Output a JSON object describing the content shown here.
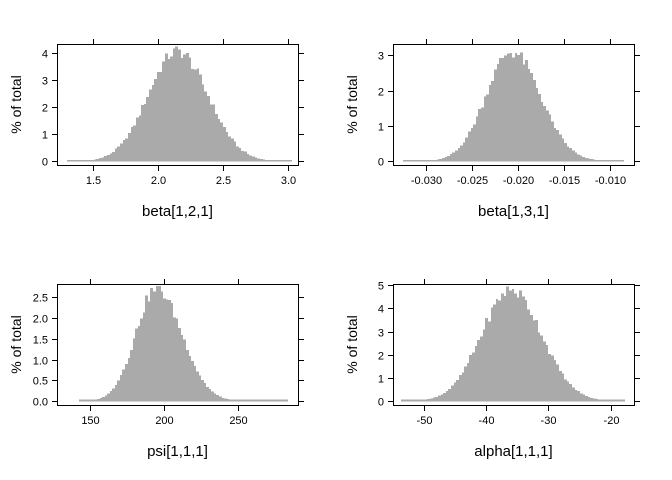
{
  "figure": {
    "background": "#ffffff",
    "grid": "off",
    "legend": "none",
    "shared_ylabel": "% of total"
  },
  "colors": {
    "bar_fill": "#aaaaaa",
    "axis": "#000000",
    "text": "#000000"
  },
  "chart_data": [
    {
      "type": "bar",
      "subtype": "histogram",
      "position": "top-left",
      "title": "",
      "xlabel": "beta[1,2,1]",
      "ylabel": "% of total",
      "x_ticks": [
        1.5,
        2.0,
        2.5,
        3.0
      ],
      "x_tick_labels": [
        "1.5",
        "2.0",
        "2.5",
        "3.0"
      ],
      "y_ticks": [
        0,
        1,
        2,
        3,
        4
      ],
      "y_tick_labels": [
        "0",
        "1",
        "2",
        "3",
        "4"
      ],
      "xlim": [
        1.22,
        3.08
      ],
      "ylim": [
        -0.13,
        4.32
      ],
      "data_range": [
        1.3,
        3.03
      ],
      "mode": 2.15,
      "sd_left": 0.225,
      "sd_right": 0.235,
      "peak_percent": 4.05,
      "n_bins": 85,
      "seed": 1
    },
    {
      "type": "bar",
      "subtype": "histogram",
      "position": "top-right",
      "title": "",
      "xlabel": "beta[1,3,1]",
      "ylabel": "% of total",
      "x_ticks": [
        -0.03,
        -0.025,
        -0.02,
        -0.015,
        -0.01
      ],
      "x_tick_labels": [
        "-0.030",
        "-0.025",
        "-0.020",
        "-0.015",
        "-0.010"
      ],
      "y_ticks": [
        0,
        1,
        2,
        3
      ],
      "y_tick_labels": [
        "0",
        "1",
        "2",
        "3"
      ],
      "xlim": [
        -0.0336,
        -0.0074
      ],
      "ylim": [
        -0.1,
        3.32
      ],
      "data_range": [
        -0.0325,
        -0.0085
      ],
      "mode": -0.0207,
      "sd_left": 0.0028,
      "sd_right": 0.0031,
      "peak_percent": 3.1,
      "n_bins": 85,
      "seed": 2
    },
    {
      "type": "bar",
      "subtype": "histogram",
      "position": "bottom-left",
      "title": "",
      "xlabel": "psi[1,1,1]",
      "ylabel": "% of total",
      "x_ticks": [
        150,
        200,
        250
      ],
      "x_tick_labels": [
        "150",
        "200",
        "250"
      ],
      "y_ticks": [
        0,
        0.5,
        1.0,
        1.5,
        2.0,
        2.5
      ],
      "y_tick_labels": [
        "0.0",
        "0.5",
        "1.0",
        "1.5",
        "2.0",
        "2.5"
      ],
      "xlim": [
        128,
        290
      ],
      "ylim": [
        -0.09,
        2.82
      ],
      "data_range": [
        143,
        283
      ],
      "mode": 195,
      "sd_left": 14,
      "sd_right": 17,
      "peak_percent": 2.7,
      "n_bins": 82,
      "seed": 3
    },
    {
      "type": "bar",
      "subtype": "histogram",
      "position": "bottom-right",
      "title": "",
      "xlabel": "alpha[1,1,1]",
      "ylabel": "% of total",
      "x_ticks": [
        -50,
        -40,
        -30,
        -20
      ],
      "x_tick_labels": [
        "-50",
        "-40",
        "-30",
        "-20"
      ],
      "y_ticks": [
        0,
        1,
        2,
        3,
        4,
        5
      ],
      "y_tick_labels": [
        "0",
        "1",
        "2",
        "3",
        "4",
        "5"
      ],
      "xlim": [
        -54.9,
        -16.3
      ],
      "ylim": [
        -0.16,
        5.05
      ],
      "data_range": [
        -53.6,
        -17.8
      ],
      "mode": -36,
      "sd_left": 4.7,
      "sd_right": 4.9,
      "peak_percent": 4.8,
      "n_bins": 85,
      "seed": 4
    }
  ]
}
